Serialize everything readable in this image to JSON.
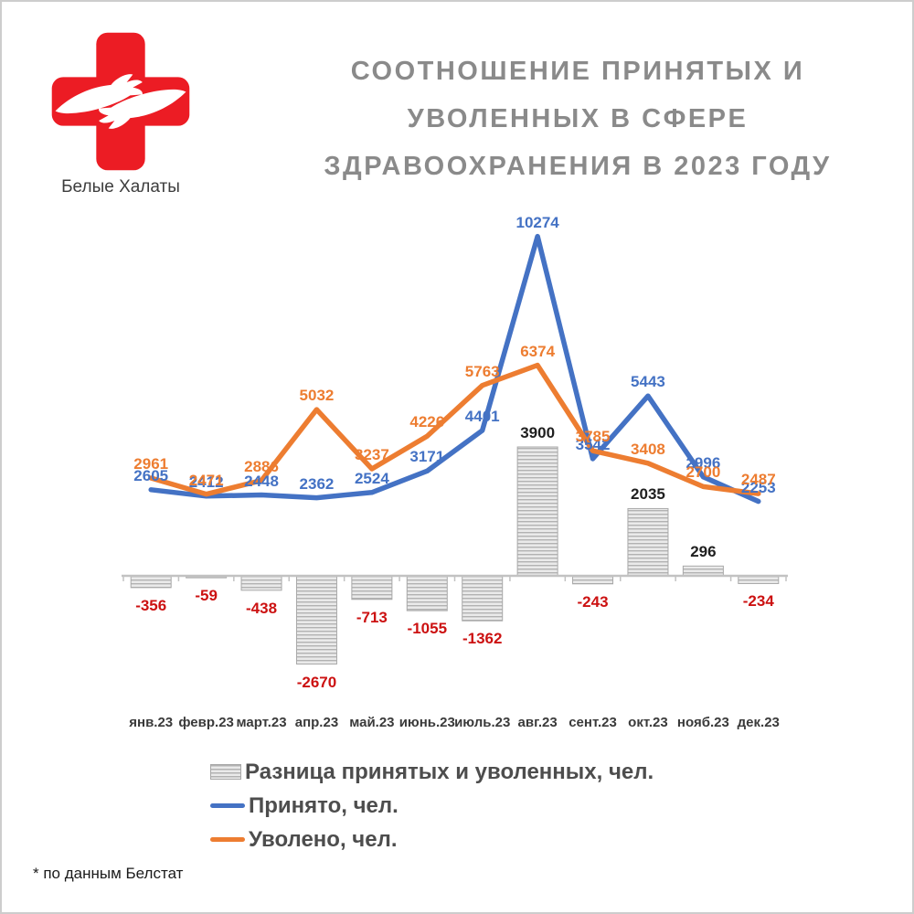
{
  "brand": {
    "name": "Белые Халаты",
    "cross_color": "#ec1c24"
  },
  "title": {
    "lines": [
      "СООТНОШЕНИЕ ПРИНЯТЫХ И",
      "УВОЛЕННЫХ В СФЕРЕ",
      "ЗДРАВООХРАНЕНИЯ В 2023 ГОДУ"
    ],
    "color": "#8a8a8a"
  },
  "footnote": "* по данным Белстат",
  "chart_data": {
    "type": "combo",
    "categories": [
      "янв.23",
      "февр.23",
      "март.23",
      "апр.23",
      "май.23",
      "июнь.23",
      "июль.23",
      "авг.23",
      "сент.23",
      "окт.23",
      "нояб.23",
      "дек.23"
    ],
    "series": [
      {
        "name": "Разница принятых и уволенных, чел.",
        "type": "bar",
        "fill": "gray-horizontal-hatch",
        "values": [
          -356,
          -59,
          -438,
          -2670,
          -713,
          -1055,
          -1362,
          3900,
          -243,
          2035,
          296,
          -234
        ],
        "label_color_positive": "#1f1f1f",
        "label_color_negative": "#cc1111"
      },
      {
        "name": "Принято, чел.",
        "type": "line",
        "color": "#4472c4",
        "values": [
          2605,
          2412,
          2448,
          2362,
          2524,
          3171,
          4401,
          10274,
          3542,
          5443,
          2996,
          2253
        ]
      },
      {
        "name": "Уволено, чел.",
        "type": "line",
        "color": "#ed7d31",
        "values": [
          2961,
          2471,
          2886,
          5032,
          3237,
          4226,
          5763,
          6374,
          3785,
          3408,
          2700,
          2487
        ]
      }
    ],
    "value_labels": true,
    "grid": false,
    "legend_position": "bottom",
    "y_zero_baseline": true,
    "y_range_approx": [
      -2670,
      10274
    ],
    "axis_color": "#c2c2c2"
  }
}
